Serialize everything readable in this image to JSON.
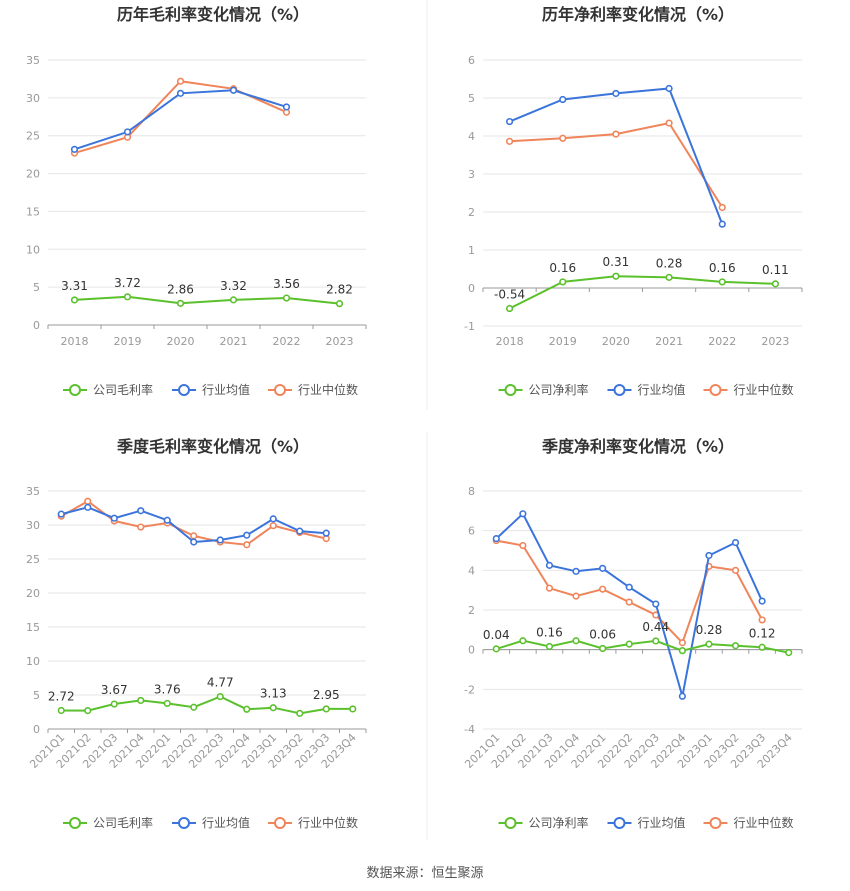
{
  "source": "数据来源：恒生聚源",
  "colors": {
    "company": "#5ac02b",
    "avg": "#3b74db",
    "median": "#f0845a",
    "grid": "#e6e6e6",
    "axis": "#999999",
    "title": "#333333"
  },
  "chart_data": [
    {
      "type": "line",
      "title": "历年毛利率变化情况（%）",
      "categories": [
        "2018",
        "2019",
        "2020",
        "2021",
        "2022",
        "2023"
      ],
      "ylim": [
        0,
        35
      ],
      "yticks": [
        0,
        5,
        10,
        15,
        20,
        25,
        30,
        35
      ],
      "grid": true,
      "legend": "bottom-center",
      "series": [
        {
          "name": "公司毛利率",
          "color": "company",
          "values": [
            3.31,
            3.72,
            2.86,
            3.32,
            3.56,
            2.82
          ],
          "labels": [
            "3.31",
            "3.72",
            "2.86",
            "3.32",
            "3.56",
            "2.82"
          ]
        },
        {
          "name": "行业均值",
          "color": "avg",
          "values": [
            23.2,
            25.5,
            30.6,
            31.0,
            28.8,
            null
          ]
        },
        {
          "name": "行业中位数",
          "color": "median",
          "values": [
            22.7,
            24.8,
            32.2,
            31.2,
            28.1,
            null
          ]
        }
      ]
    },
    {
      "type": "line",
      "title": "历年净利率变化情况（%）",
      "categories": [
        "2018",
        "2019",
        "2020",
        "2021",
        "2022",
        "2023"
      ],
      "ylim": [
        -1,
        6
      ],
      "yticks": [
        -1,
        0,
        1,
        2,
        3,
        4,
        5,
        6
      ],
      "grid": true,
      "legend": "bottom-center",
      "series": [
        {
          "name": "公司净利率",
          "color": "company",
          "values": [
            -0.54,
            0.16,
            0.31,
            0.28,
            0.16,
            0.11
          ],
          "labels": [
            "-0.54",
            "0.16",
            "0.31",
            "0.28",
            "0.16",
            "0.11"
          ]
        },
        {
          "name": "行业均值",
          "color": "avg",
          "values": [
            4.38,
            4.96,
            5.12,
            5.25,
            1.68,
            null
          ]
        },
        {
          "name": "行业中位数",
          "color": "median",
          "values": [
            3.86,
            3.94,
            4.05,
            4.34,
            2.12,
            null
          ]
        }
      ]
    },
    {
      "type": "line",
      "title": "季度毛利率变化情况（%）",
      "categories": [
        "2021Q1",
        "2021Q2",
        "2021Q3",
        "2021Q4",
        "2022Q1",
        "2022Q2",
        "2022Q3",
        "2022Q4",
        "2023Q1",
        "2023Q2",
        "2023Q3",
        "2023Q4"
      ],
      "rotate_labels": true,
      "ylim": [
        0,
        35
      ],
      "yticks": [
        0,
        5,
        10,
        15,
        20,
        25,
        30,
        35
      ],
      "grid": true,
      "legend": "bottom-center",
      "series": [
        {
          "name": "公司毛利率",
          "color": "company",
          "values": [
            2.72,
            2.7,
            3.67,
            4.2,
            3.76,
            3.2,
            4.77,
            2.9,
            3.13,
            2.3,
            2.95,
            2.95
          ],
          "labels": [
            "2.72",
            null,
            "3.67",
            null,
            "3.76",
            null,
            "4.77",
            null,
            "3.13",
            null,
            "2.95",
            null
          ]
        },
        {
          "name": "行业均值",
          "color": "avg",
          "values": [
            31.6,
            32.6,
            31.0,
            32.1,
            30.7,
            27.5,
            27.8,
            28.5,
            30.9,
            29.1,
            28.8,
            null
          ]
        },
        {
          "name": "行业中位数",
          "color": "median",
          "values": [
            31.3,
            33.5,
            30.6,
            29.7,
            30.3,
            28.4,
            27.5,
            27.1,
            29.9,
            28.9,
            28.0,
            null
          ]
        }
      ]
    },
    {
      "type": "line",
      "title": "季度净利率变化情况（%）",
      "categories": [
        "2021Q1",
        "2021Q2",
        "2021Q3",
        "2021Q4",
        "2022Q1",
        "2022Q2",
        "2022Q3",
        "2022Q4",
        "2023Q1",
        "2023Q2",
        "2023Q3",
        "2023Q4"
      ],
      "rotate_labels": true,
      "ylim": [
        -4,
        8
      ],
      "yticks": [
        -4,
        -2,
        0,
        2,
        4,
        6,
        8
      ],
      "grid": true,
      "legend": "bottom-center",
      "series": [
        {
          "name": "公司净利率",
          "color": "company",
          "values": [
            0.04,
            0.45,
            0.16,
            0.45,
            0.06,
            0.28,
            0.44,
            -0.05,
            0.28,
            0.2,
            0.12,
            -0.15
          ],
          "labels": [
            "0.04",
            null,
            "0.16",
            null,
            "0.06",
            null,
            "0.44",
            null,
            "0.28",
            null,
            "0.12",
            null
          ]
        },
        {
          "name": "行业均值",
          "color": "avg",
          "values": [
            5.6,
            6.85,
            4.25,
            3.95,
            4.1,
            3.15,
            2.3,
            -2.35,
            4.75,
            5.4,
            2.45,
            null
          ]
        },
        {
          "name": "行业中位数",
          "color": "median",
          "values": [
            5.5,
            5.25,
            3.1,
            2.7,
            3.05,
            2.4,
            1.75,
            0.35,
            4.2,
            4.0,
            1.5,
            null
          ]
        }
      ]
    }
  ]
}
